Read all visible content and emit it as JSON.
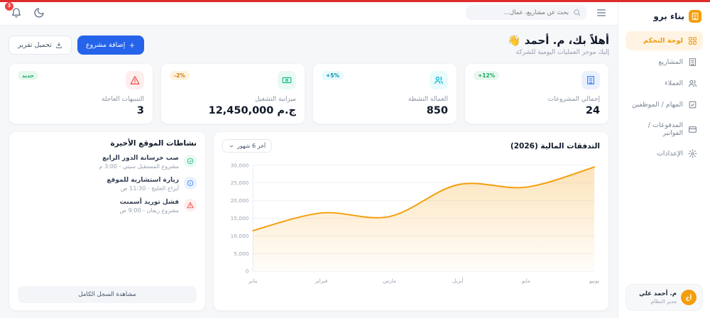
{
  "accent": {
    "top_bar": "#e02b2b",
    "primary": "#2563eb",
    "brand_orange": "#f59e0b"
  },
  "sidebar": {
    "logo": "بناء برو",
    "items": [
      {
        "id": "dashboard",
        "label": "لوحة التحكم",
        "icon": "grid-icon",
        "active": true
      },
      {
        "id": "projects",
        "label": "المشاريع",
        "icon": "building-icon",
        "active": false
      },
      {
        "id": "clients",
        "label": "العملاء",
        "icon": "users-icon",
        "active": false
      },
      {
        "id": "tasks-employees",
        "label": "المهام / الموظفين",
        "icon": "tasks-icon",
        "active": false
      },
      {
        "id": "payments-invoices",
        "label": "المدفوعات / الفواتير",
        "icon": "payments-icon",
        "active": false
      },
      {
        "id": "settings",
        "label": "الإعدادات",
        "icon": "gear-icon",
        "active": false
      }
    ],
    "user": {
      "name": "م. أحمد علي",
      "role": "مدير النظام",
      "initials": "أح"
    }
  },
  "topbar": {
    "search_placeholder": "بحث عن مشاريع، عمال...",
    "notifications_count": "3"
  },
  "header": {
    "title": "أهلاً بك، م. أحمد",
    "emoji": "👋",
    "subtitle": "إليك موجز العمليات اليومية للشركة",
    "add_project_label": "إضافة مشروع",
    "download_report_label": "تحميل تقرير"
  },
  "stats": [
    {
      "id": "total-projects",
      "title": "إجمالي المشروعات",
      "value": "24",
      "badge": "+12%",
      "badge_color": "teal",
      "icon": "building-icon",
      "color": "blue"
    },
    {
      "id": "active-workers",
      "title": "العمالة النشطة",
      "value": "850",
      "badge": "+5%",
      "badge_color": "cyan",
      "icon": "users-icon",
      "color": "cyan"
    },
    {
      "id": "operating-budget",
      "title": "ميزانية التشغيل",
      "value": "12,450,000 ج.م",
      "badge": "-2%",
      "badge_color": "amber",
      "icon": "banknote-icon",
      "color": "green"
    },
    {
      "id": "urgent-alerts",
      "title": "التنبيهات العاجلة",
      "value": "3",
      "badge": "جديد",
      "badge_color": "green",
      "icon": "warning-icon",
      "color": "red"
    }
  ],
  "chart_card": {
    "title": "التدفقات المالية (2026)",
    "range_label": "آخر 6 شهور"
  },
  "chart_data": {
    "type": "area",
    "title": "التدفقات المالية (2026)",
    "x": [
      "يناير",
      "فبراير",
      "مارس",
      "أبريل",
      "مايو",
      "يونيو"
    ],
    "values": [
      11500,
      16500,
      15500,
      24500,
      23800,
      29500
    ],
    "ylim": [
      0,
      30000
    ],
    "ytick_step": 5000,
    "line_color": "#f59e0b",
    "grid": true,
    "legend": "none",
    "xlabel": "",
    "ylabel": ""
  },
  "activities": {
    "title": "نشاطات الموقع الأخيرة",
    "items": [
      {
        "title": "صب خرسانة الدور الرابع",
        "meta": "مشروع المستقبل سيتي - 3:00 م",
        "icon": "check-circle-icon",
        "color": "green"
      },
      {
        "title": "زيارة استشارية للموقع",
        "meta": "أبراج الخليج - 11:30 ص",
        "icon": "info-circle-icon",
        "color": "blue"
      },
      {
        "title": "فشل توريد أسمنت",
        "meta": "مشروع ريفان - 9:00 ص",
        "icon": "warning-icon",
        "color": "red"
      }
    ],
    "view_all_label": "مشاهدة السجل الكامل"
  }
}
